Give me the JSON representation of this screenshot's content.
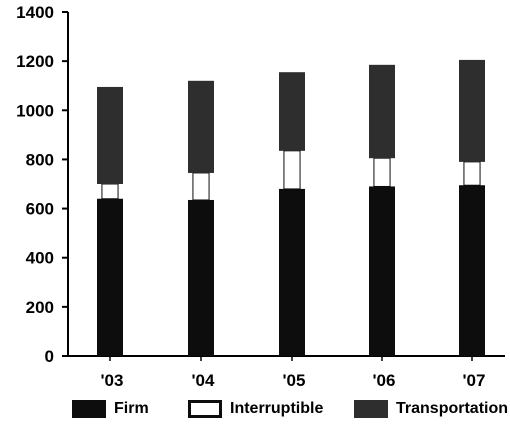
{
  "chart_data": {
    "type": "bar",
    "stacked": true,
    "categories": [
      "'03",
      "'04",
      "'05",
      "'06",
      "'07"
    ],
    "series": [
      {
        "name": "Firm",
        "color": "#0d0d0d",
        "values": [
          640,
          635,
          680,
          690,
          695
        ]
      },
      {
        "name": "Interruptible",
        "color": "#ffffff",
        "values": [
          60,
          110,
          155,
          115,
          95
        ]
      },
      {
        "name": "Transportation",
        "color": "#2e2e2e",
        "values": [
          395,
          375,
          320,
          380,
          415
        ]
      }
    ],
    "ylim": [
      0,
      1400
    ],
    "yticks": [
      0,
      200,
      400,
      600,
      800,
      1000,
      1200,
      1400
    ],
    "grid": false,
    "legend_position": "bottom",
    "title": "",
    "xlabel": "",
    "ylabel": ""
  },
  "legend": {
    "items": [
      {
        "label": "Firm",
        "icon": "firm-swatch-icon"
      },
      {
        "label": "Interruptible",
        "icon": "interruptible-swatch-icon"
      },
      {
        "label": "Transportation",
        "icon": "transportation-swatch-icon"
      }
    ]
  }
}
